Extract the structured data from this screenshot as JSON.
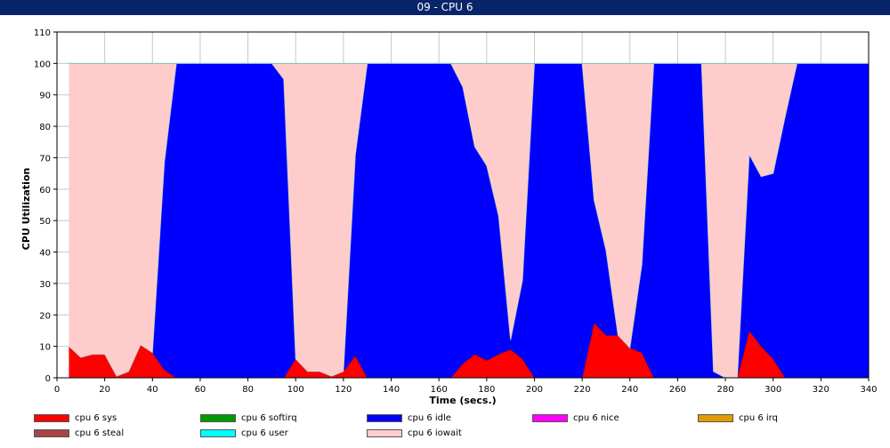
{
  "window": {
    "title": "09 - CPU 6"
  },
  "chart_data": {
    "type": "area",
    "stacked": true,
    "title": "09 - CPU 6",
    "xlabel": "Time (secs.)",
    "ylabel": "CPU Utilization",
    "xlim": [
      0,
      340
    ],
    "ylim": [
      0,
      110
    ],
    "x_ticks": [
      "0",
      "20",
      "40",
      "60",
      "80",
      "100",
      "120",
      "140",
      "160",
      "180",
      "200",
      "220",
      "240",
      "260",
      "280",
      "300",
      "320",
      "340"
    ],
    "y_ticks": [
      "0",
      "10",
      "20",
      "30",
      "40",
      "50",
      "60",
      "70",
      "80",
      "90",
      "100",
      "110"
    ],
    "grid": true,
    "legend_position": "bottom",
    "x": [
      5,
      10,
      15,
      20,
      25,
      30,
      35,
      40,
      45,
      50,
      55,
      60,
      65,
      70,
      75,
      80,
      85,
      90,
      95,
      100,
      105,
      110,
      115,
      120,
      125,
      130,
      135,
      140,
      145,
      150,
      155,
      160,
      165,
      170,
      175,
      180,
      185,
      190,
      195,
      200,
      205,
      210,
      215,
      220,
      225,
      230,
      235,
      240,
      245,
      250,
      255,
      260,
      265,
      270,
      275,
      280,
      285,
      290,
      295,
      300,
      305,
      310,
      315,
      320,
      325,
      330,
      335,
      340
    ],
    "series": [
      {
        "name": "cpu 6 sys",
        "color": "#ff0000",
        "values": [
          10,
          6.5,
          7.5,
          7.5,
          0.5,
          2,
          10.5,
          8,
          2.5,
          0,
          0,
          0,
          0,
          0,
          0,
          0,
          0,
          0,
          0,
          6,
          2,
          2,
          0.5,
          2,
          7,
          0,
          0,
          0,
          0,
          0,
          0,
          0,
          0,
          4.5,
          7.5,
          5.5,
          7.5,
          9,
          6,
          0,
          0,
          0,
          0,
          0,
          17.5,
          13.5,
          13.5,
          9.5,
          8,
          0,
          0,
          0,
          0,
          0,
          0,
          0,
          0,
          15,
          10,
          6,
          0,
          0,
          0,
          0,
          0,
          0,
          0,
          0
        ]
      },
      {
        "name": "cpu 6 softirq",
        "color": "#009900",
        "values": [
          0,
          0,
          0,
          0,
          0,
          0,
          0,
          0,
          0,
          0,
          0,
          0,
          0,
          0,
          0,
          0,
          0,
          0,
          0,
          0,
          0,
          0,
          0,
          0,
          0,
          0,
          0,
          0,
          0,
          0,
          0,
          0,
          0,
          0,
          0,
          0,
          0,
          0,
          0,
          0,
          0,
          0,
          0,
          0,
          0,
          0,
          0,
          0,
          0,
          0,
          0,
          0,
          0,
          0,
          0,
          0,
          0,
          0,
          0,
          0,
          0,
          0,
          0,
          0,
          0,
          0,
          0,
          0
        ]
      },
      {
        "name": "cpu 6 idle",
        "color": "#0000ff",
        "values": [
          0,
          0,
          0,
          0,
          0,
          0,
          0,
          0,
          66,
          100,
          100,
          100,
          100,
          100,
          100,
          100,
          100,
          100,
          95,
          0,
          0,
          0,
          0,
          0,
          64,
          100,
          100,
          100,
          100,
          100,
          100,
          100,
          100,
          88,
          66,
          62,
          44,
          3,
          25,
          100,
          100,
          100,
          100,
          100,
          39,
          27,
          0,
          0,
          28,
          100,
          100,
          100,
          100,
          100,
          2,
          0,
          0,
          56,
          54,
          59,
          83,
          100,
          100,
          100,
          100,
          100,
          100,
          100
        ]
      },
      {
        "name": "cpu 6 nice",
        "color": "#ff00ff",
        "values": [
          0,
          0,
          0,
          0,
          0,
          0,
          0,
          0,
          0,
          0,
          0,
          0,
          0,
          0,
          0,
          0,
          0,
          0,
          0,
          0,
          0,
          0,
          0,
          0,
          0,
          0,
          0,
          0,
          0,
          0,
          0,
          0,
          0,
          0,
          0,
          0,
          0,
          0,
          0,
          0,
          0,
          0,
          0,
          0,
          0,
          0,
          0,
          0,
          0,
          0,
          0,
          0,
          0,
          0,
          0,
          0,
          0,
          0,
          0,
          0,
          0,
          0,
          0,
          0,
          0,
          0,
          0,
          0
        ]
      },
      {
        "name": "cpu 6 irq",
        "color": "#e39b00",
        "values": [
          0,
          0,
          0,
          0,
          0,
          0,
          0,
          0,
          0,
          0,
          0,
          0,
          0,
          0,
          0,
          0,
          0,
          0,
          0,
          0,
          0,
          0,
          0,
          0,
          0,
          0,
          0,
          0,
          0,
          0,
          0,
          0,
          0,
          0,
          0,
          0,
          0,
          0,
          0,
          0,
          0,
          0,
          0,
          0,
          0,
          0,
          0,
          0,
          0,
          0,
          0,
          0,
          0,
          0,
          0,
          0,
          0,
          0,
          0,
          0,
          0,
          0,
          0,
          0,
          0,
          0,
          0,
          0
        ]
      },
      {
        "name": "cpu 6 steal",
        "color": "#aa4444",
        "values": [
          0,
          0,
          0,
          0,
          0,
          0,
          0,
          0,
          0,
          0,
          0,
          0,
          0,
          0,
          0,
          0,
          0,
          0,
          0,
          0,
          0,
          0,
          0,
          0,
          0,
          0,
          0,
          0,
          0,
          0,
          0,
          0,
          0,
          0,
          0,
          0,
          0,
          0,
          0,
          0,
          0,
          0,
          0,
          0,
          0,
          0,
          0,
          0,
          0,
          0,
          0,
          0,
          0,
          0,
          0,
          0,
          0,
          0,
          0,
          0,
          0,
          0,
          0,
          0,
          0,
          0,
          0,
          0
        ]
      },
      {
        "name": "cpu 6 user",
        "color": "#00ffff",
        "values": [
          0,
          0,
          0,
          0,
          0,
          0,
          0,
          0,
          0,
          0,
          0,
          0,
          0,
          0,
          0,
          0,
          0,
          0,
          0,
          0,
          0,
          0,
          0,
          0,
          0,
          0,
          0,
          0,
          0,
          0,
          0,
          0,
          0,
          0,
          0,
          0,
          0,
          0,
          0,
          0,
          0,
          0,
          0,
          0,
          0,
          0,
          0,
          0,
          0,
          0,
          0,
          0,
          0,
          0,
          0,
          0,
          0,
          0,
          0,
          0,
          0,
          0,
          0,
          0,
          0,
          0,
          0,
          0
        ]
      },
      {
        "name": "cpu 6 iowait",
        "color": "#ffcccc",
        "values": [
          90,
          93.5,
          92.5,
          92.5,
          99.5,
          98,
          89.5,
          92,
          31.5,
          0,
          0,
          0,
          0,
          0,
          0,
          0,
          0,
          0,
          5,
          94,
          98,
          98,
          99.5,
          98,
          29,
          0,
          0,
          0,
          0,
          0,
          0,
          0,
          0,
          7.5,
          26.5,
          32.5,
          48.5,
          88,
          69,
          0,
          0,
          0,
          0,
          0,
          43.5,
          59.5,
          86.5,
          90.5,
          64,
          0,
          0,
          0,
          0,
          0,
          98,
          100,
          100,
          29,
          36,
          35,
          17,
          0,
          0,
          0,
          0,
          0,
          0,
          0
        ]
      }
    ]
  }
}
